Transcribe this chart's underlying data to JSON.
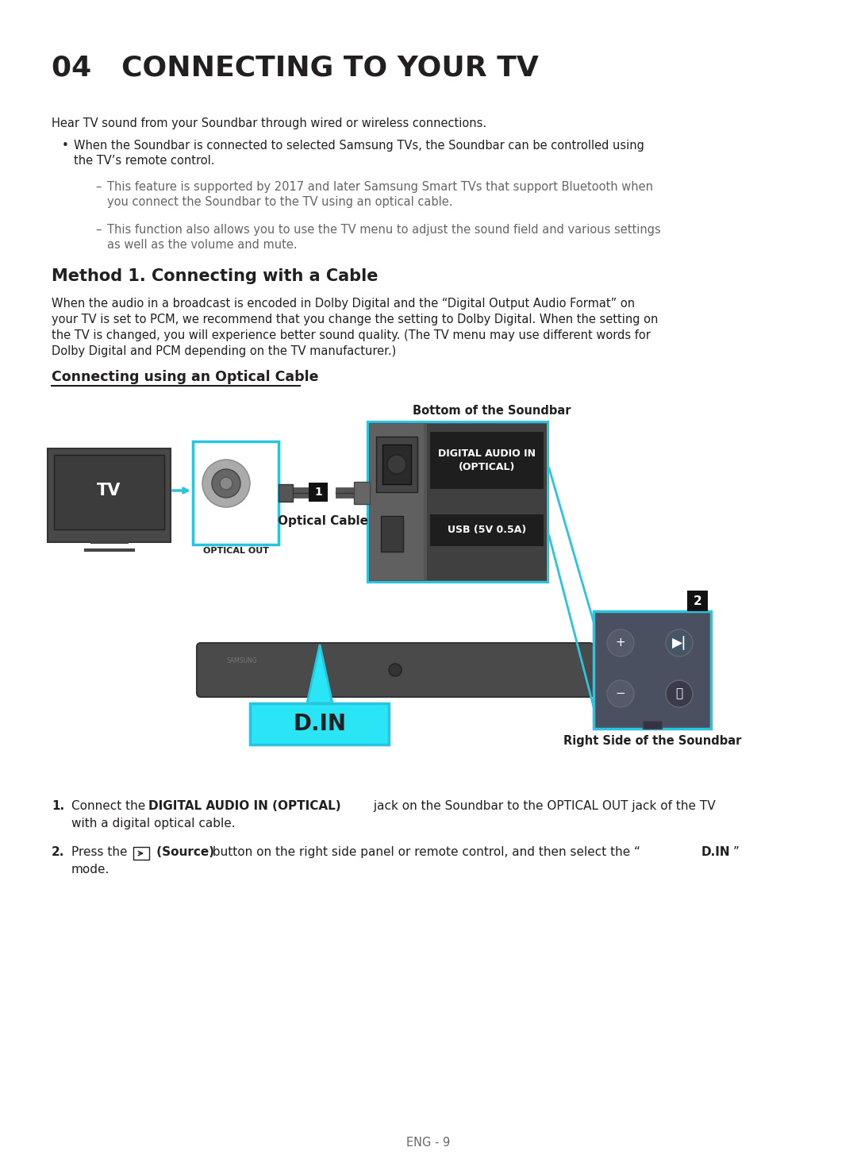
{
  "title": "04   CONNECTING TO YOUR TV",
  "intro": "Hear TV sound from your Soundbar through wired or wireless connections.",
  "bullet1_line1": "When the Soundbar is connected to selected Samsung TVs, the Soundbar can be controlled using",
  "bullet1_line2": "the TV’s remote control.",
  "sub1_line1": "This feature is supported by 2017 and later Samsung Smart TVs that support Bluetooth when",
  "sub1_line2": "you connect the Soundbar to the TV using an optical cable.",
  "sub2_line1": "This function also allows you to use the TV menu to adjust the sound field and various settings",
  "sub2_line2": "as well as the volume and mute.",
  "method_title": "Method 1. Connecting with a Cable",
  "method_body_line1": "When the audio in a broadcast is encoded in Dolby Digital and the “Digital Output Audio Format” on",
  "method_body_line2": "your TV is set to PCM, we recommend that you change the setting to Dolby Digital. When the setting on",
  "method_body_line3": "the TV is changed, you will experience better sound quality. (The TV menu may use different words for",
  "method_body_line4": "Dolby Digital and PCM depending on the TV manufacturer.)",
  "optical_title": "Connecting using an Optical Cable",
  "bottom_label": "Bottom of the Soundbar",
  "optical_cable_label": "Optical Cable",
  "optical_out_label": "OPTICAL OUT",
  "digital_audio_label": "DIGITAL AUDIO IN\n(OPTICAL)",
  "usb_label": "USB (5V 0.5A)",
  "right_side_label": "Right Side of the Soundbar",
  "din_label": "D.IN",
  "page_num": "ENG - 9",
  "bg_color": "#ffffff",
  "text_color": "#231f20",
  "gray_text": "#666666",
  "cyan_color": "#29c4e0",
  "dark_gray": "#4a4a4a",
  "mid_gray": "#888888",
  "tv_screen_color": "#3c3c3c",
  "panel_dark": "#3a3a3a",
  "panel_mid": "#555555",
  "label_dark": "#1a1a1a"
}
